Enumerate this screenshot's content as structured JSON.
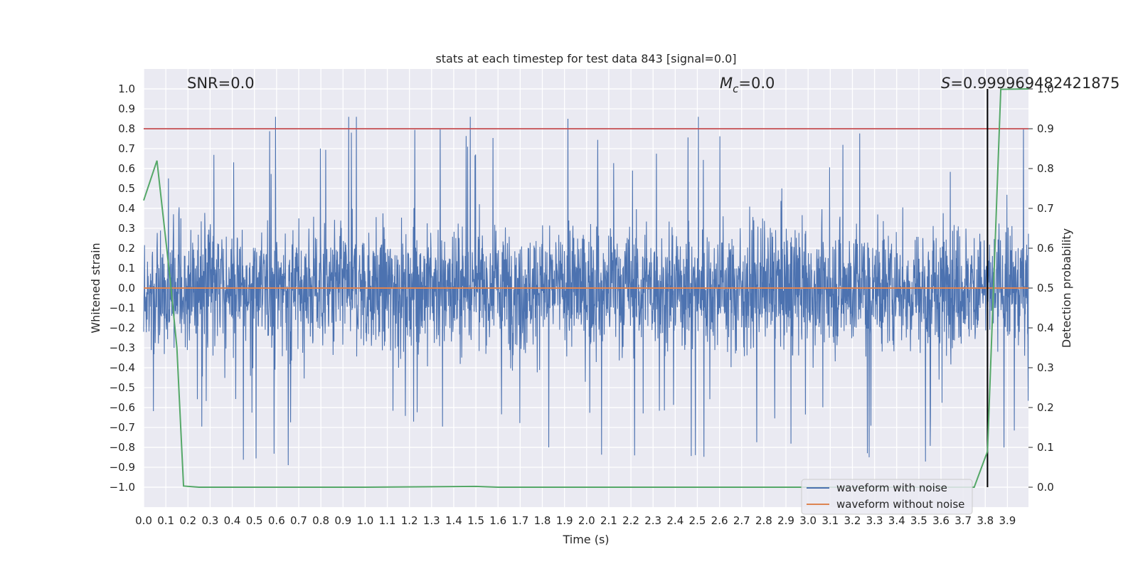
{
  "chart_data": {
    "type": "line",
    "title": "stats at each timestep for test data 843 [signal=0.0]",
    "xlabel": "Time (s)",
    "ylabel": "Whitened strain",
    "y2label": "Detection probability",
    "xlim": [
      0.0,
      3.995
    ],
    "ylim": [
      -1.1,
      1.1
    ],
    "y2lim": [
      -0.05,
      1.05
    ],
    "x_ticks": [
      "0.0",
      "0.1",
      "0.2",
      "0.3",
      "0.4",
      "0.5",
      "0.6",
      "0.7",
      "0.8",
      "0.9",
      "1.0",
      "1.1",
      "1.2",
      "1.3",
      "1.4",
      "1.5",
      "1.6",
      "1.7",
      "1.8",
      "1.9",
      "2.0",
      "2.1",
      "2.2",
      "2.3",
      "2.4",
      "2.5",
      "2.6",
      "2.7",
      "2.8",
      "2.9",
      "3.0",
      "3.1",
      "3.2",
      "3.3",
      "3.4",
      "3.5",
      "3.6",
      "3.7",
      "3.8",
      "3.9"
    ],
    "y_ticks": [
      "1.0",
      "0.9",
      "0.8",
      "0.7",
      "0.6",
      "0.5",
      "0.4",
      "0.3",
      "0.2",
      "0.1",
      "0.0",
      "−0.1",
      "−0.2",
      "−0.3",
      "−0.4",
      "−0.5",
      "−0.6",
      "−0.7",
      "−0.8",
      "−0.9",
      "−1.0"
    ],
    "y2_ticks": [
      "1.0",
      "0.9",
      "0.8",
      "0.7",
      "0.6",
      "0.5",
      "0.4",
      "0.3",
      "0.2",
      "0.1",
      "0.0"
    ],
    "grid": true,
    "legend_placement": "lower-right",
    "annotations": {
      "snr": "SNR=0.0",
      "mc_symbol": "M",
      "mc_sub": "c",
      "mc_value": "=0.0",
      "s_symbol": "S",
      "s_value": "=0.999969482421875"
    },
    "threshold_y2": 0.9,
    "marker_x": 3.81,
    "series": [
      {
        "name": "waveform with noise",
        "axis": "left",
        "color": "#4c72b0",
        "envelope": "noise band approx ±0.4 with spikes to about +0.86 and −0.94"
      },
      {
        "name": "waveform without noise",
        "axis": "left",
        "color": "#dd8452",
        "x": [
          0.0,
          3.995
        ],
        "y": [
          0.0,
          0.0
        ]
      },
      {
        "axis": "right",
        "color": "#55a868",
        "x": [
          0.0,
          0.06,
          0.12,
          0.15,
          0.18,
          0.25,
          1.0,
          1.5,
          1.6,
          2.0,
          3.0,
          3.5,
          3.75,
          3.81,
          3.87,
          3.995
        ],
        "y": [
          0.72,
          0.82,
          0.52,
          0.35,
          0.003,
          0.0,
          0.0,
          0.002,
          0.0,
          0.0,
          0.0,
          0.0,
          0.0,
          0.09,
          0.999,
          1.0
        ]
      }
    ]
  },
  "colors": {
    "axes_bg": "#eaeaf2",
    "grid": "#ffffff",
    "threshold_line": "#c44e52",
    "marker_line": "#000000"
  }
}
